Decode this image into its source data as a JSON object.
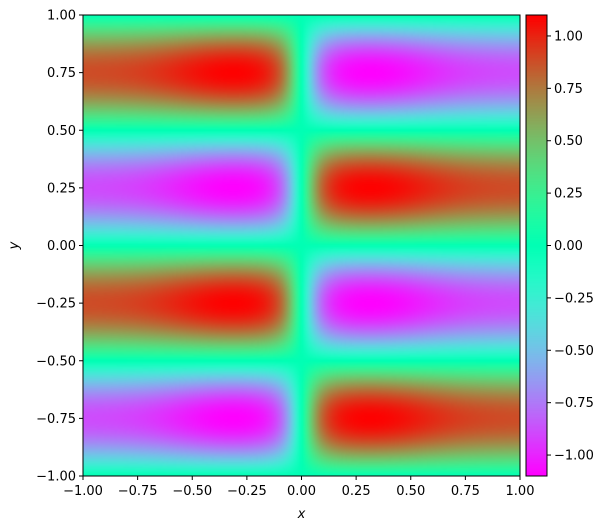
{
  "chart_data": {
    "type": "heatmap",
    "title": "",
    "xlabel": "x",
    "ylabel": "y",
    "xlim": [
      -1.0,
      1.0
    ],
    "ylim": [
      -1.0,
      1.0
    ],
    "x_ticks": [
      "−1.00",
      "−0.75",
      "−0.50",
      "−0.25",
      "0.00",
      "0.25",
      "0.50",
      "0.75",
      "1.00"
    ],
    "x_tick_values": [
      -1.0,
      -0.75,
      -0.5,
      -0.25,
      0.0,
      0.25,
      0.5,
      0.75,
      1.0
    ],
    "y_ticks": [
      "1.00",
      "0.75",
      "0.50",
      "0.25",
      "0.00",
      "−0.25",
      "−0.50",
      "−0.75",
      "−1.00"
    ],
    "y_tick_values": [
      1.0,
      0.75,
      0.5,
      0.25,
      0.0,
      -0.25,
      -0.5,
      -0.75,
      -1.0
    ],
    "colorbar": {
      "colormap": "rainbow",
      "vmin": -1.1,
      "vmax": 1.1,
      "ticks": [
        "1.00",
        "0.75",
        "0.50",
        "0.25",
        "0.00",
        "−0.25",
        "−0.50",
        "−0.75",
        "−1.00"
      ],
      "tick_values": [
        1.0,
        0.75,
        0.5,
        0.25,
        0.0,
        -0.25,
        -0.5,
        -0.75,
        -1.0
      ]
    },
    "grid": false,
    "field_description": "sign(x) * sin(2*pi*y) style bands: negative x half shows red at y=0.75 and y=-0.25, purple at y=0.25 and y=-0.75; positive x half inverted; near-zero seam at x=0",
    "samples": {
      "x": [
        -1.0,
        -0.75,
        -0.5,
        -0.3,
        -0.15,
        0.0,
        0.15,
        0.3,
        0.5,
        0.75,
        1.0
      ],
      "y": [
        1.0,
        0.75,
        0.5,
        0.25,
        0.0,
        -0.25,
        -0.5,
        -0.75,
        -1.0
      ],
      "z": [
        [
          0.0,
          0.0,
          0.0,
          0.0,
          0.0,
          0.0,
          0.0,
          0.0,
          0.0,
          0.0,
          0.0
        ],
        [
          0.85,
          0.95,
          1.0,
          1.05,
          0.85,
          0.0,
          -0.85,
          -1.05,
          -1.0,
          -0.95,
          -0.85
        ],
        [
          0.0,
          0.0,
          0.0,
          0.0,
          0.0,
          0.0,
          0.0,
          0.0,
          0.0,
          0.0,
          0.0
        ],
        [
          -0.85,
          -0.95,
          -1.0,
          -1.05,
          -0.85,
          0.0,
          0.85,
          1.05,
          1.0,
          0.95,
          0.85
        ],
        [
          0.0,
          0.0,
          0.0,
          0.0,
          0.0,
          0.0,
          0.0,
          0.0,
          0.0,
          0.0,
          0.0
        ],
        [
          0.85,
          0.95,
          1.0,
          1.05,
          0.85,
          0.0,
          -0.85,
          -1.05,
          -1.0,
          -0.95,
          -0.85
        ],
        [
          0.0,
          0.0,
          0.0,
          0.0,
          0.0,
          0.0,
          0.0,
          0.0,
          0.0,
          0.0,
          0.0
        ],
        [
          -0.85,
          -0.95,
          -1.0,
          -1.05,
          -0.85,
          0.0,
          0.85,
          1.05,
          1.0,
          0.95,
          0.85
        ],
        [
          0.0,
          0.0,
          0.0,
          0.0,
          0.0,
          0.0,
          0.0,
          0.0,
          0.0,
          0.0,
          0.0
        ]
      ]
    }
  }
}
